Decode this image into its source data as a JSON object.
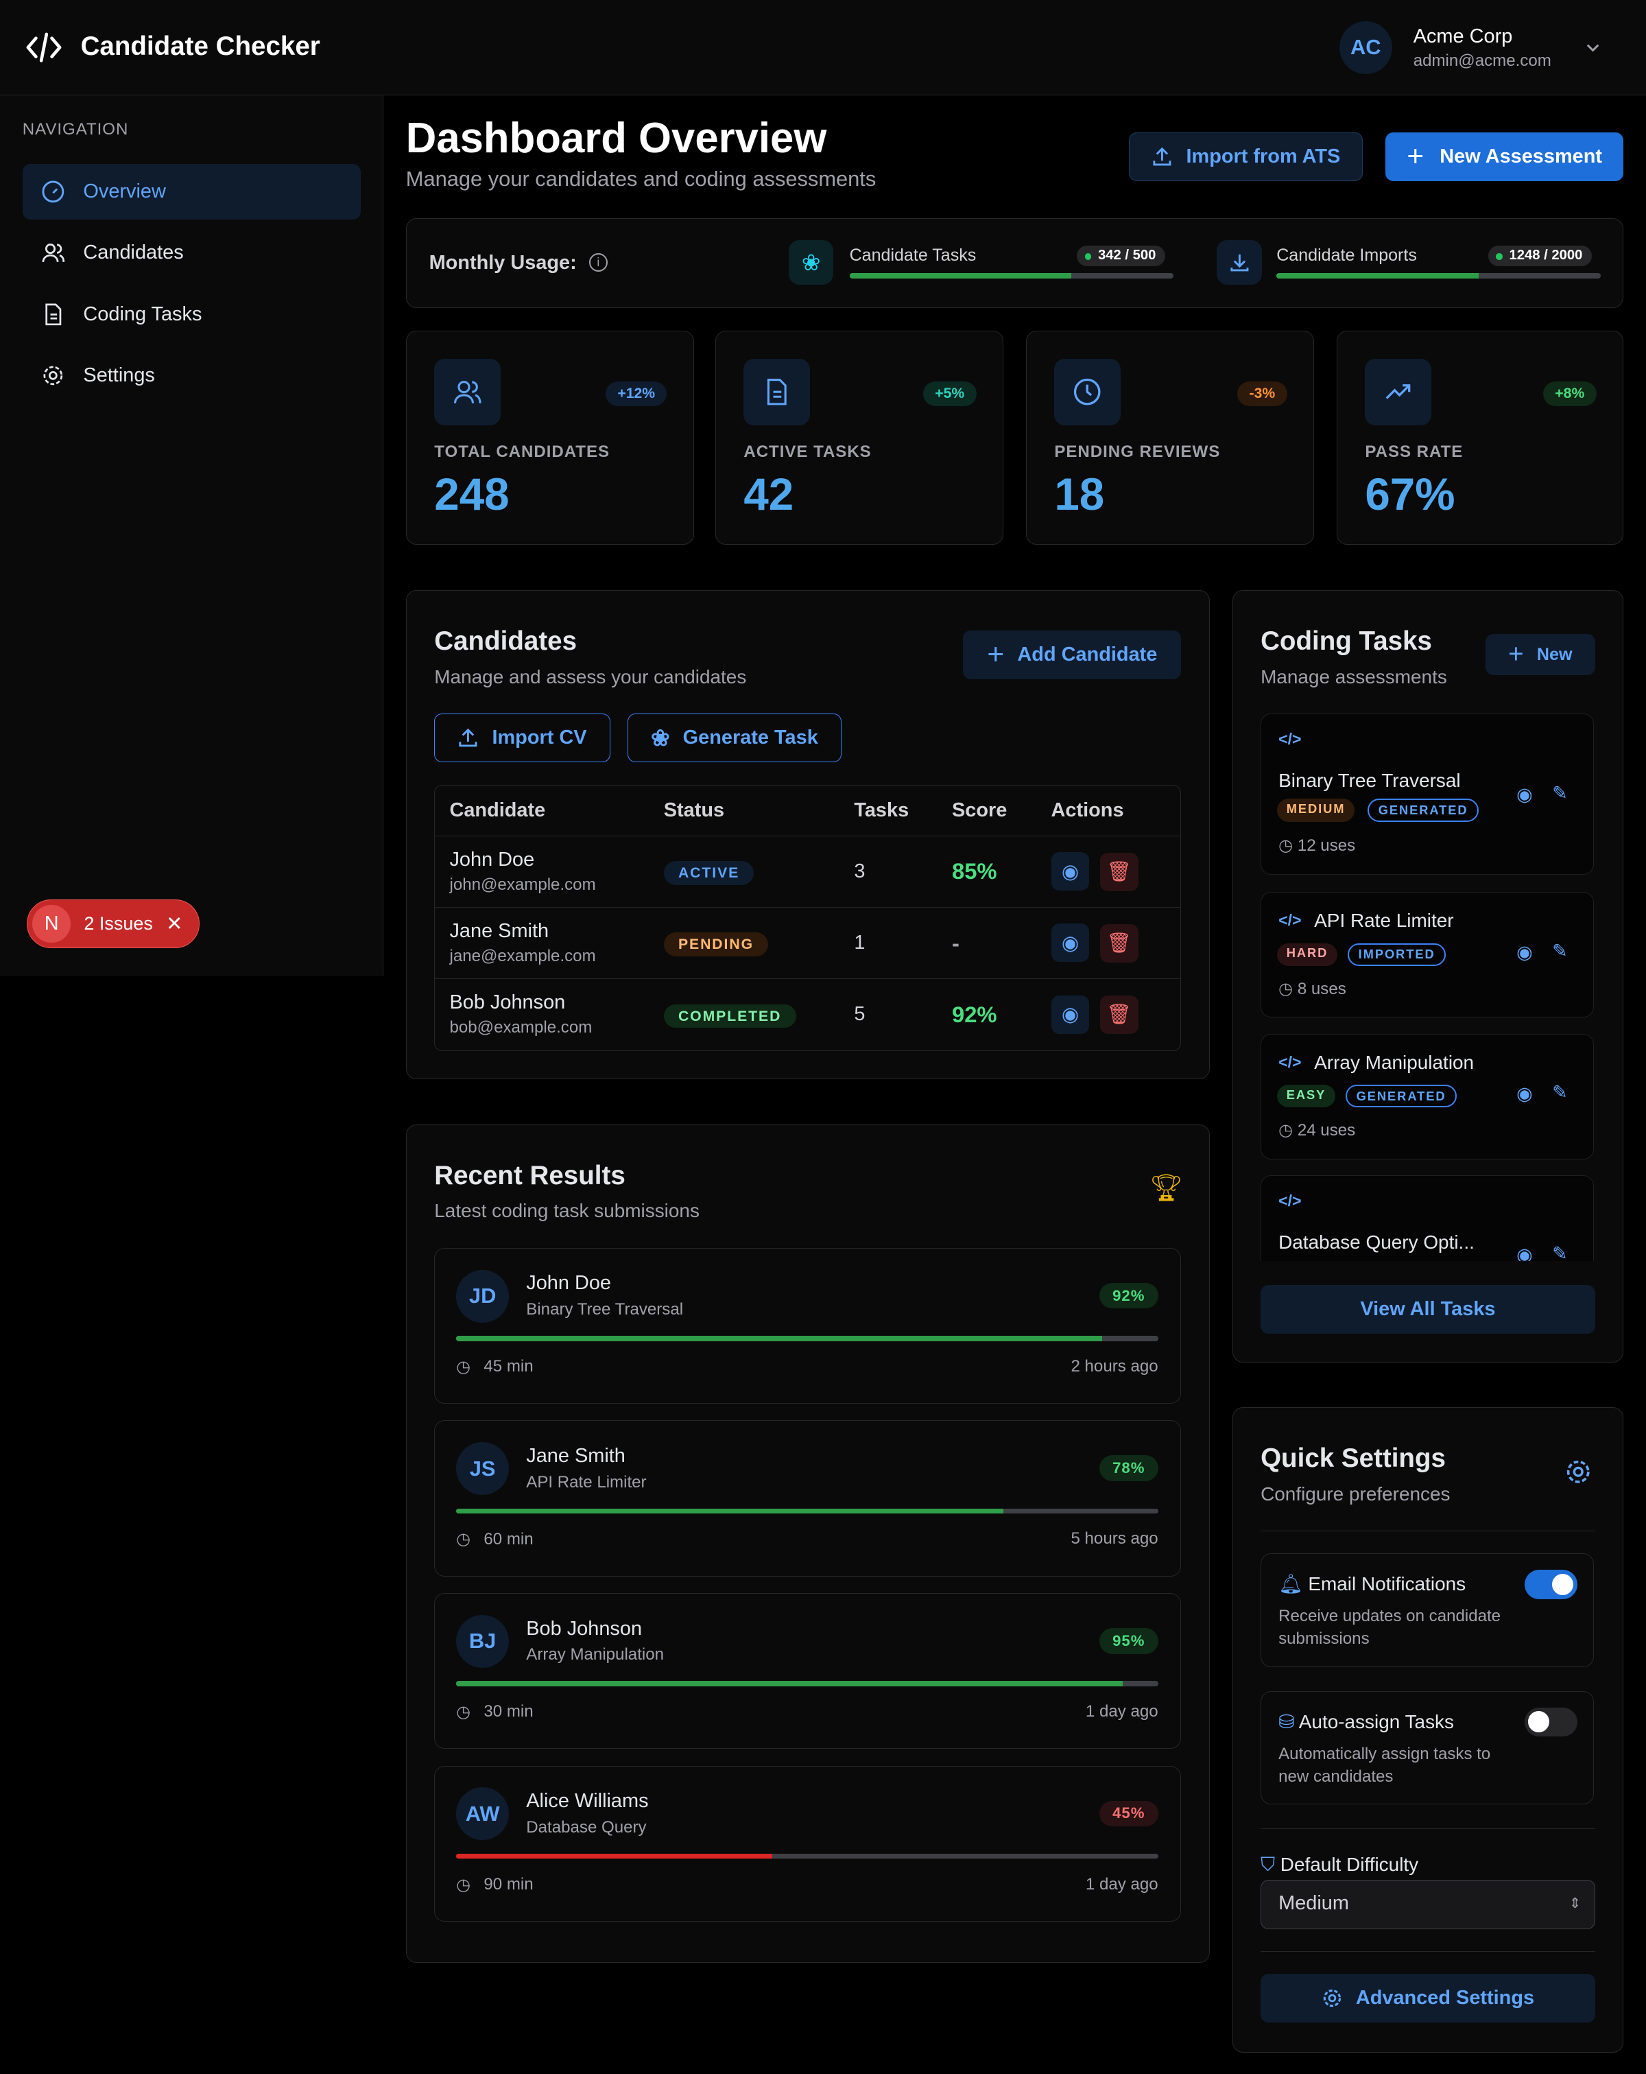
{
  "app": {
    "title": "Candidate Checker",
    "org": "Acme Corp",
    "email": "admin@acme.com",
    "avatar": "AC"
  },
  "sidebar": {
    "heading": "NAVIGATION",
    "items": [
      {
        "label": "Overview",
        "icon": "gauge-icon",
        "active": true
      },
      {
        "label": "Candidates",
        "icon": "users-icon"
      },
      {
        "label": "Coding Tasks",
        "icon": "file-icon"
      },
      {
        "label": "Settings",
        "icon": "gear-icon"
      }
    ]
  },
  "issues": {
    "badge": "N",
    "label": "2 Issues"
  },
  "page": {
    "title": "Dashboard Overview",
    "subtitle": "Manage your candidates and coding assessments",
    "import_ats": "Import from ATS",
    "new_assessment": "New Assessment"
  },
  "usage": {
    "label": "Monthly Usage:",
    "items": [
      {
        "name": "Candidate Tasks",
        "count": "342 / 500",
        "fraction": 0.684
      },
      {
        "name": "Candidate Imports",
        "count": "1248 / 2000",
        "fraction": 0.624
      }
    ]
  },
  "stats": [
    {
      "label": "TOTAL CANDIDATES",
      "value": "248",
      "change": "+12%"
    },
    {
      "label": "ACTIVE TASKS",
      "value": "42",
      "change": "+5%"
    },
    {
      "label": "PENDING REVIEWS",
      "value": "18",
      "change": "-3%"
    },
    {
      "label": "PASS RATE",
      "value": "67%",
      "change": "+8%"
    }
  ],
  "candidates": {
    "title": "Candidates",
    "subtitle": "Manage and assess your candidates",
    "add": "Add Candidate",
    "import_cv": "Import CV",
    "generate": "Generate Task",
    "columns": [
      "Candidate",
      "Status",
      "Tasks",
      "Score",
      "Actions"
    ],
    "rows": [
      {
        "name": "John Doe",
        "email": "john@example.com",
        "status": "ACTIVE",
        "tasks": "3",
        "score": "85%"
      },
      {
        "name": "Jane Smith",
        "email": "jane@example.com",
        "status": "PENDING",
        "tasks": "1",
        "score": "-"
      },
      {
        "name": "Bob Johnson",
        "email": "bob@example.com",
        "status": "COMPLETED",
        "tasks": "5",
        "score": "92%"
      }
    ]
  },
  "tasks": {
    "title": "Coding Tasks",
    "subtitle": "Manage assessments",
    "new": "New",
    "view_all": "View All Tasks",
    "items": [
      {
        "name": "Binary Tree Traversal",
        "difficulty": "MEDIUM",
        "source": "GENERATED",
        "uses": "12 uses"
      },
      {
        "name": "API Rate Limiter",
        "difficulty": "HARD",
        "source": "IMPORTED",
        "uses": "8 uses"
      },
      {
        "name": "Array Manipulation",
        "difficulty": "EASY",
        "source": "GENERATED",
        "uses": "24 uses"
      },
      {
        "name": "Database Query Opti..."
      }
    ]
  },
  "results": {
    "title": "Recent Results",
    "subtitle": "Latest coding task submissions",
    "items": [
      {
        "initials": "JD",
        "name": "John Doe",
        "task": "Binary Tree Traversal",
        "score": "92%",
        "pct": 92,
        "time": "45 min",
        "ago": "2 hours ago"
      },
      {
        "initials": "JS",
        "name": "Jane Smith",
        "task": "API Rate Limiter",
        "score": "78%",
        "pct": 78,
        "time": "60 min",
        "ago": "5 hours ago"
      },
      {
        "initials": "BJ",
        "name": "Bob Johnson",
        "task": "Array Manipulation",
        "score": "95%",
        "pct": 95,
        "time": "30 min",
        "ago": "1 day ago"
      },
      {
        "initials": "AW",
        "name": "Alice Williams",
        "task": "Database Query",
        "score": "45%",
        "pct": 45,
        "time": "90 min",
        "ago": "1 day ago"
      }
    ]
  },
  "settings": {
    "title": "Quick Settings",
    "subtitle": "Configure preferences",
    "email": {
      "label": "Email Notifications",
      "desc": "Receive updates on candidate submissions",
      "on": true
    },
    "auto": {
      "label": "Auto-assign Tasks",
      "desc": "Automatically assign tasks to new candidates",
      "on": false
    },
    "difficulty_label": "Default Difficulty",
    "difficulty": "Medium",
    "advanced": "Advanced Settings"
  },
  "colors": {
    "accent": "#60a5fa",
    "primary": "#1e6fd9",
    "success": "#22c55e",
    "danger": "#ef4444",
    "warning": "#f59e0b"
  }
}
